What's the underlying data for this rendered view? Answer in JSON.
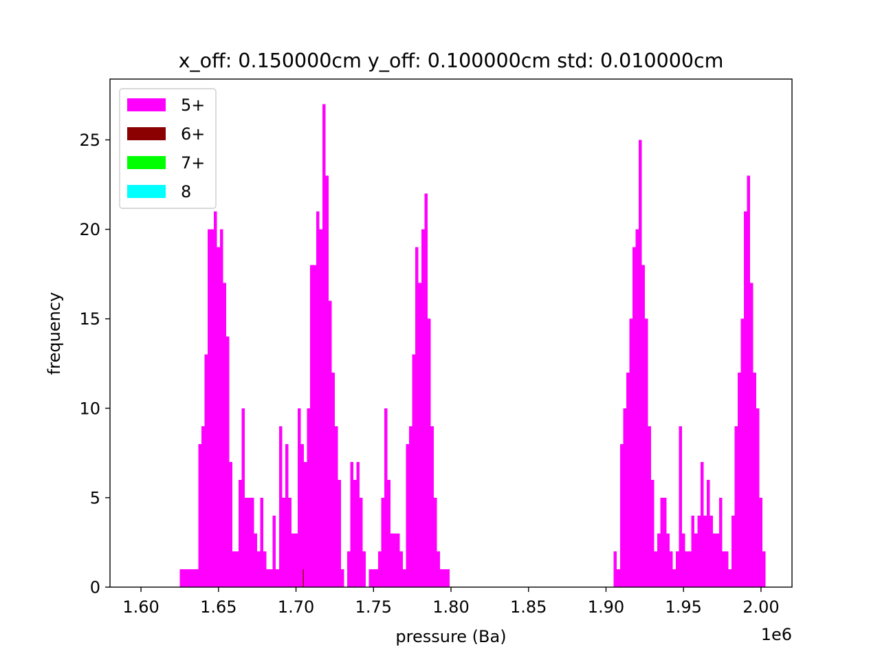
{
  "chart_data": {
    "type": "bar",
    "title": "x_off: 0.150000cm y_off: 0.100000cm std: 0.010000cm",
    "xlabel": "pressure (Ba)",
    "ylabel": "frequency",
    "x_offset_label": "1e6",
    "xlim": [
      1.58,
      2.02
    ],
    "ylim": [
      0,
      28.4
    ],
    "x_ticks": [
      1.6,
      1.65,
      1.7,
      1.75,
      1.8,
      1.85,
      1.9,
      1.95,
      2.0
    ],
    "x_tick_labels": [
      "1.60",
      "1.65",
      "1.70",
      "1.75",
      "1.80",
      "1.85",
      "1.90",
      "1.95",
      "2.00"
    ],
    "y_ticks": [
      0,
      5,
      10,
      15,
      20,
      25
    ],
    "y_tick_labels": [
      "0",
      "5",
      "10",
      "15",
      "20",
      "25"
    ],
    "grid": false,
    "legend_position": "top-left",
    "legend": [
      {
        "label": "5+",
        "color": "#ff00ff"
      },
      {
        "label": "6+",
        "color": "#8b0000"
      },
      {
        "label": "7+",
        "color": "#00ff00"
      },
      {
        "label": "8",
        "color": "#00ffff"
      }
    ],
    "series": [
      {
        "name": "5+",
        "color": "#ff00ff",
        "bin_start": 1.625,
        "bin_width": 0.002,
        "counts": [
          1,
          1,
          1,
          1,
          1,
          1,
          8,
          9,
          13,
          20,
          20,
          21,
          19,
          20,
          17,
          14,
          7,
          2,
          2,
          6,
          10,
          5,
          5,
          5,
          3,
          2,
          5,
          2,
          1,
          1,
          4,
          1,
          9,
          5,
          8,
          5,
          3,
          3,
          10,
          8,
          7,
          10,
          18,
          18,
          21,
          20,
          27,
          23,
          16,
          12,
          9,
          6,
          1,
          0,
          2,
          7,
          6,
          7,
          5,
          2,
          0,
          1,
          1,
          1,
          2,
          5,
          10,
          6,
          3,
          3,
          3,
          2,
          1,
          8,
          9,
          13,
          19,
          17,
          20,
          22,
          15,
          9,
          5,
          2,
          1,
          1,
          1,
          0,
          0,
          0,
          0,
          0,
          0,
          0,
          0,
          0,
          0,
          0,
          0,
          0,
          0,
          0,
          0,
          0,
          0,
          0,
          0,
          0,
          0,
          0,
          0,
          0,
          0,
          0,
          0,
          0,
          0,
          0,
          0,
          0,
          0,
          0,
          0,
          0,
          0,
          0,
          0,
          0,
          0,
          0,
          0,
          0,
          0,
          0,
          0,
          0,
          0,
          0,
          0,
          0,
          2,
          1,
          8,
          10,
          12,
          15,
          19,
          20,
          25,
          18,
          15,
          9,
          6,
          2,
          3,
          5,
          5,
          3,
          2,
          1,
          2,
          9,
          3,
          2,
          2,
          4,
          3,
          4,
          7,
          4,
          6,
          4,
          3,
          3,
          5,
          2,
          2,
          1,
          4,
          9,
          12,
          15,
          21,
          23,
          17,
          12,
          10,
          5,
          2,
          0,
          0,
          0,
          0,
          0,
          0,
          0
        ]
      },
      {
        "name": "6+",
        "color": "#8b0000",
        "bin_start": 1.7045,
        "bin_width": 0.0006,
        "counts": [
          1
        ]
      },
      {
        "name": "7+",
        "color": "#00ff00",
        "bin_start": 1.625,
        "bin_width": 0.002,
        "counts": []
      },
      {
        "name": "8",
        "color": "#00ffff",
        "bin_start": 1.625,
        "bin_width": 0.002,
        "counts": []
      }
    ]
  }
}
